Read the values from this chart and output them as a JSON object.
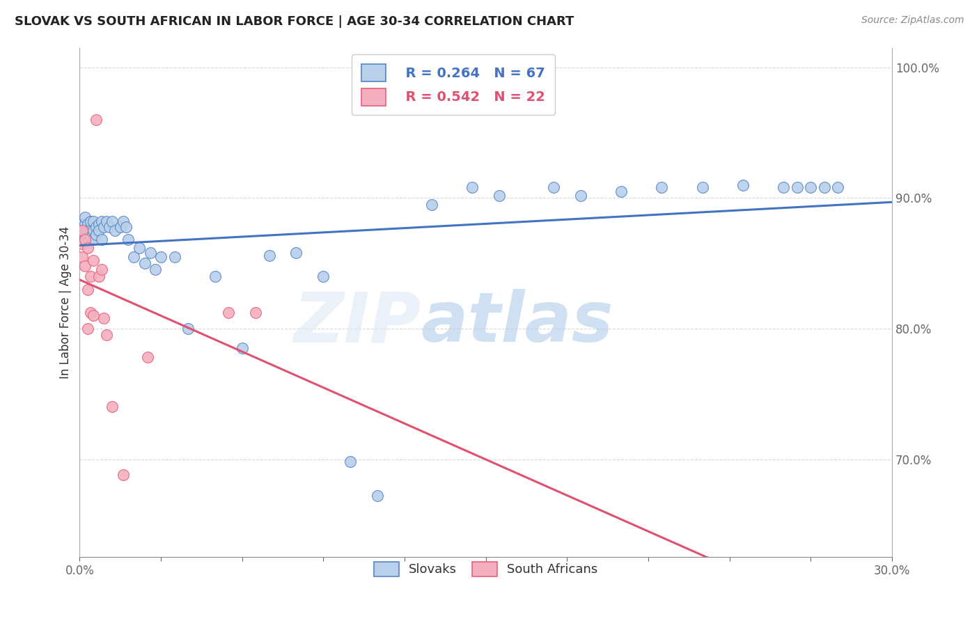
{
  "title": "SLOVAK VS SOUTH AFRICAN IN LABOR FORCE | AGE 30-34 CORRELATION CHART",
  "source_text": "Source: ZipAtlas.com",
  "ylabel": "In Labor Force | Age 30-34",
  "xlim": [
    0.0,
    0.3
  ],
  "ylim": [
    0.625,
    1.015
  ],
  "xticks": [
    0.0,
    0.03,
    0.06,
    0.09,
    0.12,
    0.15,
    0.18,
    0.21,
    0.24,
    0.27,
    0.3
  ],
  "xticklabels": [
    "0.0%",
    "",
    "",
    "",
    "",
    "",
    "",
    "",
    "",
    "",
    "30.0%"
  ],
  "ytick_positions": [
    0.7,
    0.8,
    0.9,
    1.0
  ],
  "ytick_labels": [
    "70.0%",
    "80.0%",
    "90.0%",
    "100.0%"
  ],
  "legend_slovak_label": "Slovaks",
  "legend_sa_label": "South Africans",
  "r_slovak": "R = 0.264",
  "n_slovak": "N = 67",
  "r_sa": "R = 0.542",
  "n_sa": "N = 22",
  "slovak_color": "#b8d0ea",
  "sa_color": "#f4b0c0",
  "slovak_edge_color": "#5585c5",
  "sa_edge_color": "#e8607a",
  "slovak_line_color": "#4472c4",
  "sa_line_color": "#e05070",
  "grid_color": "#d8d8d8",
  "tick_color": "#5080c8",
  "slovak_x": [
    0.001,
    0.001,
    0.001,
    0.001,
    0.001,
    0.002,
    0.002,
    0.002,
    0.002,
    0.002,
    0.003,
    0.003,
    0.003,
    0.003,
    0.003,
    0.003,
    0.004,
    0.004,
    0.004,
    0.004,
    0.005,
    0.005,
    0.005,
    0.006,
    0.006,
    0.007,
    0.007,
    0.008,
    0.008,
    0.009,
    0.01,
    0.011,
    0.012,
    0.013,
    0.015,
    0.016,
    0.017,
    0.018,
    0.02,
    0.022,
    0.024,
    0.026,
    0.028,
    0.03,
    0.035,
    0.04,
    0.05,
    0.06,
    0.07,
    0.08,
    0.09,
    0.1,
    0.11,
    0.13,
    0.145,
    0.155,
    0.175,
    0.185,
    0.2,
    0.215,
    0.23,
    0.245,
    0.26,
    0.265,
    0.27,
    0.275,
    0.28
  ],
  "slovak_y": [
    0.875,
    0.88,
    0.868,
    0.875,
    0.88,
    0.875,
    0.87,
    0.88,
    0.885,
    0.875,
    0.878,
    0.868,
    0.875,
    0.88,
    0.875,
    0.87,
    0.878,
    0.882,
    0.875,
    0.87,
    0.882,
    0.875,
    0.868,
    0.878,
    0.872,
    0.88,
    0.875,
    0.882,
    0.868,
    0.878,
    0.882,
    0.878,
    0.882,
    0.875,
    0.878,
    0.882,
    0.878,
    0.868,
    0.855,
    0.862,
    0.85,
    0.858,
    0.845,
    0.855,
    0.855,
    0.8,
    0.84,
    0.785,
    0.856,
    0.858,
    0.84,
    0.698,
    0.672,
    0.895,
    0.908,
    0.902,
    0.908,
    0.902,
    0.905,
    0.908,
    0.908,
    0.91,
    0.908,
    0.908,
    0.908,
    0.908,
    0.908
  ],
  "sa_x": [
    0.001,
    0.001,
    0.001,
    0.002,
    0.002,
    0.003,
    0.003,
    0.003,
    0.004,
    0.004,
    0.005,
    0.005,
    0.006,
    0.007,
    0.008,
    0.009,
    0.01,
    0.012,
    0.016,
    0.025,
    0.055,
    0.065
  ],
  "sa_y": [
    0.875,
    0.865,
    0.855,
    0.848,
    0.868,
    0.8,
    0.83,
    0.862,
    0.812,
    0.84,
    0.81,
    0.852,
    0.96,
    0.84,
    0.845,
    0.808,
    0.795,
    0.74,
    0.688,
    0.778,
    0.812,
    0.812
  ]
}
